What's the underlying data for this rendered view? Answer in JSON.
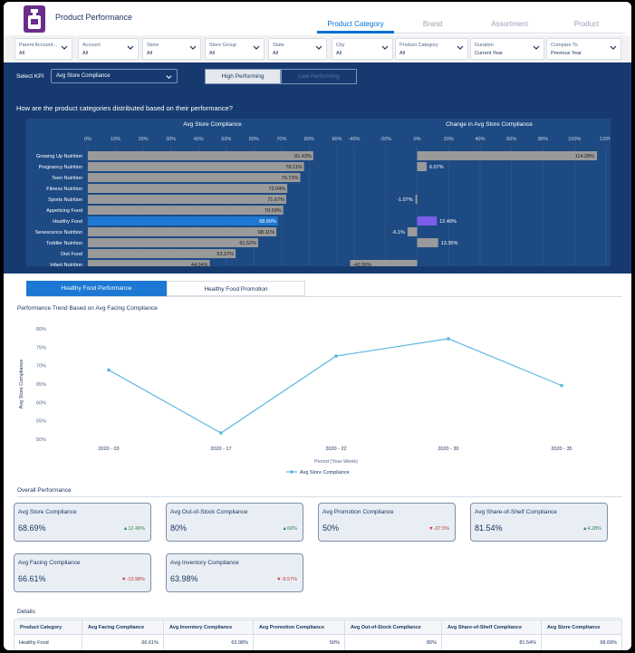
{
  "app": {
    "title": "Product Performance"
  },
  "nav": {
    "tabs": [
      {
        "label": "Product Category",
        "active": true
      },
      {
        "label": "Brand",
        "active": false
      },
      {
        "label": "Assortment",
        "active": false
      },
      {
        "label": "Product",
        "active": false
      }
    ]
  },
  "filters": [
    {
      "label": "Parent Account...",
      "value": "All"
    },
    {
      "label": "Account",
      "value": "All"
    },
    {
      "label": "Store",
      "value": "All"
    },
    {
      "label": "Store Group",
      "value": "All"
    },
    {
      "label": "State",
      "value": "All"
    },
    {
      "label": "City",
      "value": "All"
    },
    {
      "label": "Product Category",
      "value": "All"
    },
    {
      "label": "Duration",
      "value": "Current Year"
    },
    {
      "label": "Compare To",
      "value": "Previous Year"
    }
  ],
  "kpi": {
    "label": "Select KPI",
    "value": "Avg Store Compliance"
  },
  "segment": {
    "high": "High Performing",
    "low": "Low Performing"
  },
  "question": "How are the product categories distributed based on their performance?",
  "chart_data": [
    {
      "type": "bar",
      "orientation": "horizontal",
      "title": "Avg Store Compliance",
      "xticks": [
        "0%",
        "10%",
        "20%",
        "30%",
        "40%",
        "50%",
        "60%",
        "70%",
        "80%",
        "90%"
      ],
      "xlim": [
        0,
        90
      ],
      "categories": [
        "Growing Up Nutrition",
        "Pregnancy Nutrition",
        "Teen Nutrition",
        "Fitness Nutrition",
        "Sports Nutrition",
        "Appetizing Food",
        "Healthy Food",
        "Senescence Nutrition",
        "Toddler Nutrition",
        "Diet Food",
        "Infant Nutrition"
      ],
      "values": [
        81.43,
        78.11,
        76.73,
        72.04,
        71.67,
        70.59,
        68.69,
        68.11,
        61.52,
        53.37,
        44.04
      ],
      "labels": [
        "81.43%",
        "78.11%",
        "76.73%",
        "72.04%",
        "71.67%",
        "70.59%",
        "68.69%",
        "68.11%",
        "61.52%",
        "53.37%",
        "44.04%"
      ],
      "highlight": "Healthy Food",
      "colors": {
        "bar": "#9a9a9a",
        "highlight": "#1c78d2"
      }
    },
    {
      "type": "bar",
      "orientation": "horizontal",
      "title": "Change in Avg Store Compliance",
      "xticks": [
        "-40%",
        "-20%",
        "0%",
        "20%",
        "40%",
        "60%",
        "80%",
        "100%",
        "120%"
      ],
      "xlim": [
        -40,
        120
      ],
      "categories": [
        "Growing Up Nutrition",
        "Pregnancy Nutrition",
        "Teen Nutrition",
        "Fitness Nutrition",
        "Sports Nutrition",
        "Appetizing Food",
        "Healthy Food",
        "Senescence Nutrition",
        "Toddler Nutrition",
        "Diet Food",
        "Infant Nutrition"
      ],
      "values": [
        114.28,
        6.07,
        null,
        null,
        -1.07,
        null,
        12.49,
        -6.1,
        13.35,
        null,
        -42.55
      ],
      "labels": [
        "114.28%",
        "6.07%",
        "",
        "",
        "-1.07%",
        "",
        "12.49%",
        "-6.1%",
        "13.35%",
        "",
        "-42.55%"
      ],
      "highlight": "Healthy Food",
      "colors": {
        "bar": "#9a9a9a",
        "highlight": "#7b5de8"
      }
    },
    {
      "type": "line",
      "title": "Performance Trend Based on Avg Facing Compliance",
      "x": [
        "2020 - 03",
        "2020 - 17",
        "2020 - 22",
        "2020 - 30",
        "2020 - 35"
      ],
      "y": [
        68.8,
        51.7,
        72.6,
        77.3,
        64.6
      ],
      "xlabel": "Period (Year-Week)",
      "ylabel": "Avg Store Compliance",
      "ylim": [
        50,
        80
      ],
      "yticks": [
        "50%",
        "55%",
        "60%",
        "65%",
        "70%",
        "75%",
        "80%"
      ],
      "series": [
        {
          "name": "Avg Store Compliance",
          "color": "#5bb7e2"
        }
      ]
    }
  ],
  "tabs": {
    "performance": "Healthy Food Performance",
    "promotion": "Healthy Food Promotion"
  },
  "overall": {
    "title": "Overall Performance",
    "cards": [
      {
        "title": "Avg Store Compliance",
        "value": "68.69%",
        "change": "12.49%",
        "direction": "up"
      },
      {
        "title": "Avg Out-of-Stock Compliance",
        "value": "80%",
        "change": "60%",
        "direction": "up"
      },
      {
        "title": "Avg Promotion Compliance",
        "value": "50%",
        "change": "-37.5%",
        "direction": "down"
      },
      {
        "title": "Avg Share-of-Shelf Compliance",
        "value": "81.54%",
        "change": "4.28%",
        "direction": "up"
      },
      {
        "title": "Avg Facing Compliance",
        "value": "66.61%",
        "change": "-13.98%",
        "direction": "down"
      },
      {
        "title": "Avg Inventory Compliance",
        "value": "63.98%",
        "change": "-9.57%",
        "direction": "down"
      }
    ]
  },
  "details": {
    "title": "Details",
    "columns": [
      "Product Category",
      "Avg Facing Compliance",
      "Avg Inventory Compliance",
      "Avg Promotion Compliance",
      "Avg Out-of-Stock Compliance",
      "Avg Share-of-Shelf Compliance",
      "Avg Store Compliance"
    ],
    "rows": [
      [
        "Healthy Food",
        "66.61%",
        "63.98%",
        "50%",
        "80%",
        "81.54%",
        "68.69%"
      ]
    ]
  }
}
